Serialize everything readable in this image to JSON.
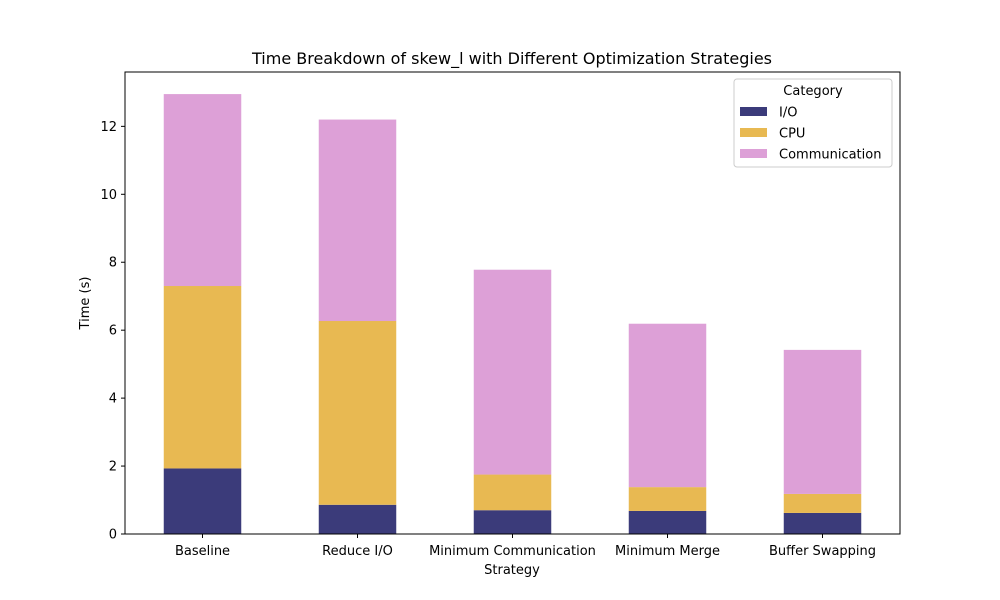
{
  "chart_data": {
    "type": "bar",
    "stacked": true,
    "title": "Time Breakdown of skew_l with Different Optimization Strategies",
    "xlabel": "Strategy",
    "ylabel": "Time (s)",
    "categories": [
      "Baseline",
      "Reduce I/O",
      "Minimum Communication",
      "Minimum Merge",
      "Buffer Swapping"
    ],
    "series": [
      {
        "name": "I/O",
        "color": "#3b3b7a",
        "values": [
          1.93,
          0.86,
          0.7,
          0.68,
          0.62
        ]
      },
      {
        "name": "CPU",
        "color": "#e8b952",
        "values": [
          5.37,
          5.41,
          1.05,
          0.7,
          0.56
        ]
      },
      {
        "name": "Communication",
        "color": "#dda0d7",
        "values": [
          5.65,
          5.93,
          6.03,
          4.81,
          4.24
        ]
      }
    ],
    "ylim": [
      0,
      13.6
    ],
    "yticks": [
      0,
      2,
      4,
      6,
      8,
      10,
      12
    ],
    "legend": {
      "title": "Category",
      "position": "top-right"
    },
    "grid": false
  }
}
